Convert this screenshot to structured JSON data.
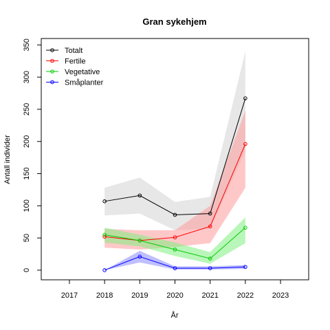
{
  "chart_data": {
    "type": "line",
    "title": "Gran sykehjem",
    "xlabel": "År",
    "ylabel": "Antall individer",
    "xlim": [
      2016.2,
      2023.8
    ],
    "ylim": [
      -15,
      360
    ],
    "x_ticks": [
      2017,
      2018,
      2019,
      2020,
      2021,
      2022,
      2023
    ],
    "y_ticks": [
      0,
      50,
      100,
      150,
      200,
      250,
      300,
      350
    ],
    "x": [
      2018,
      2019,
      2020,
      2021,
      2022
    ],
    "series": [
      {
        "name": "Totalt",
        "color": "#000000",
        "band_color": "#d3d3d3",
        "values": [
          107,
          116,
          86,
          88,
          267
        ],
        "lower": [
          85,
          88,
          62,
          64,
          185
        ],
        "upper": [
          128,
          144,
          106,
          114,
          340
        ]
      },
      {
        "name": "Fertile",
        "color": "#ff0000",
        "band_color": "#ff9a9a",
        "values": [
          52,
          46,
          51,
          68,
          196
        ],
        "lower": [
          35,
          32,
          36,
          42,
          128
        ],
        "upper": [
          64,
          62,
          62,
          100,
          248
        ]
      },
      {
        "name": "Vegetative",
        "color": "#00cc00",
        "band_color": "#7fee7f",
        "values": [
          55,
          46,
          32,
          18,
          66
        ],
        "lower": [
          43,
          37,
          22,
          10,
          42
        ],
        "upper": [
          66,
          55,
          43,
          28,
          82
        ]
      },
      {
        "name": "Småplanter",
        "color": "#0000ff",
        "band_color": "#8a8aff",
        "values": [
          0,
          21,
          3,
          3,
          5
        ],
        "lower": [
          0,
          12,
          1,
          1,
          2
        ],
        "upper": [
          0,
          30,
          6,
          6,
          8
        ]
      }
    ],
    "legend_position": "top-left"
  }
}
